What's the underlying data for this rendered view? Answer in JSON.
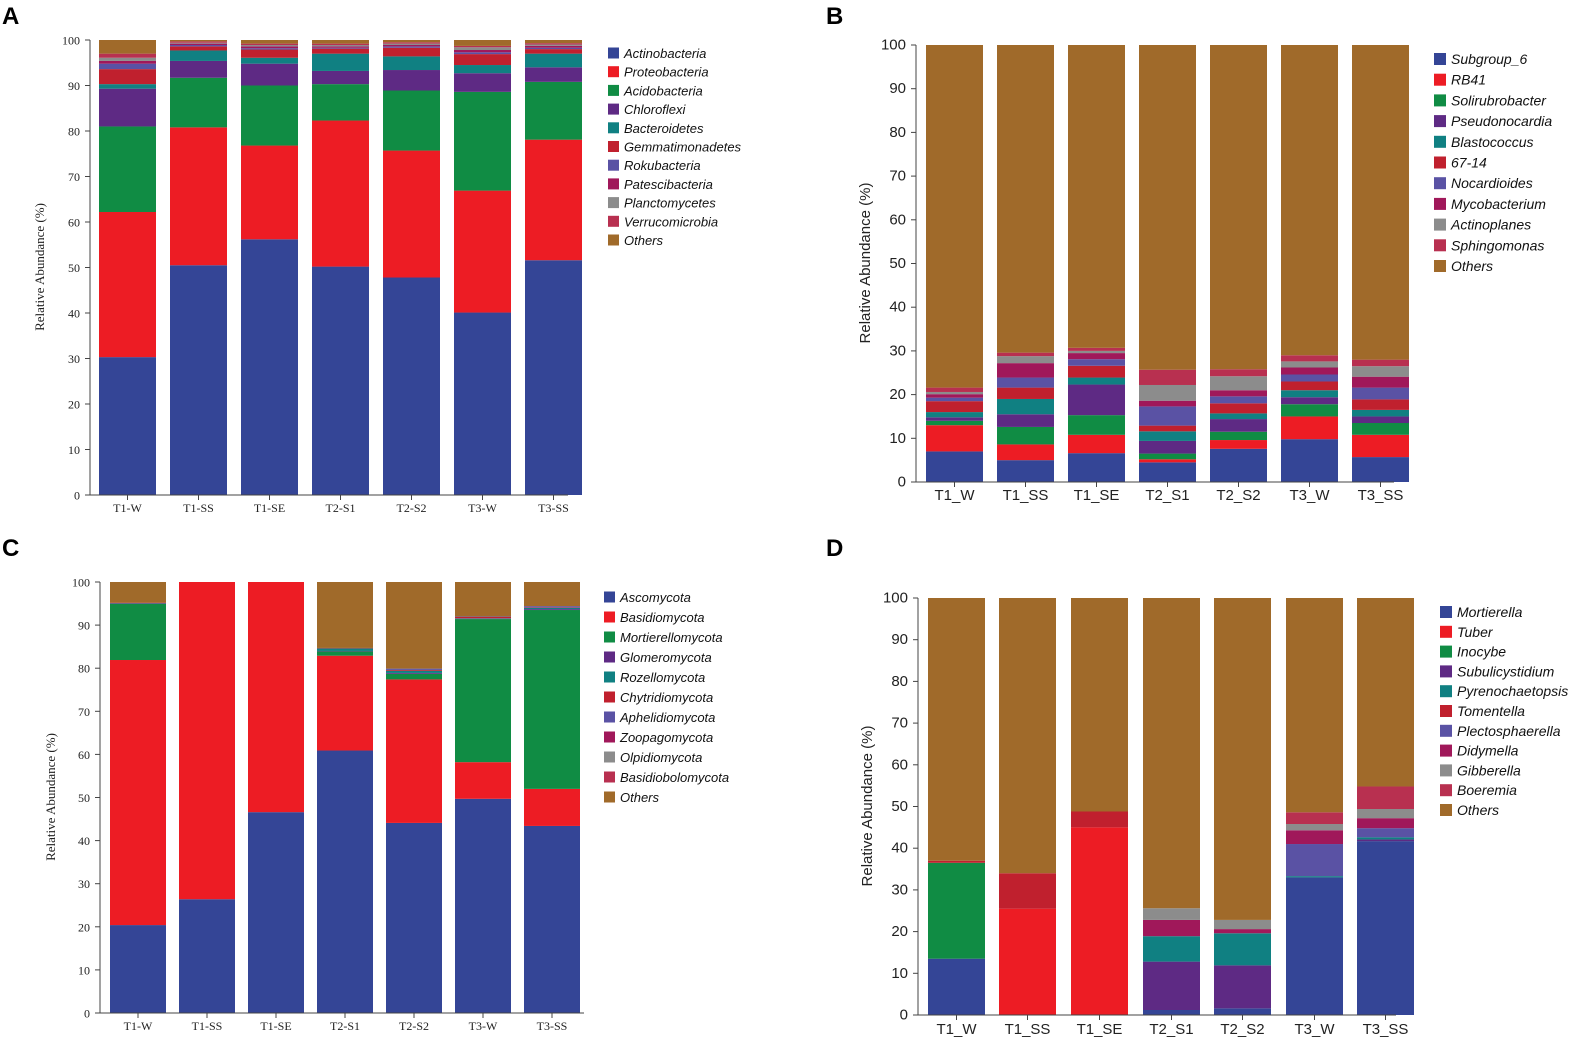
{
  "chart_data": [
    {
      "panel": "A",
      "type": "bar",
      "stacked": true,
      "ylabel": "Relative Abundance (%)",
      "xlabel": "",
      "ylim": [
        0,
        100
      ],
      "yticks": [
        "0",
        "10",
        "20",
        "30",
        "40",
        "50",
        "60",
        "70",
        "80",
        "90",
        "100"
      ],
      "categories": [
        "T1-W",
        "T1-SS",
        "T1-SE",
        "T2-S1",
        "T2-S2",
        "T3-W",
        "T3-SS"
      ],
      "series": [
        {
          "name": "Actinobacteria",
          "color": "#344596",
          "values": [
            30.3,
            50.5,
            56.2,
            50.2,
            47.8,
            40.1,
            51.6
          ]
        },
        {
          "name": "Proteobacteria",
          "color": "#ed1c24",
          "values": [
            31.9,
            30.3,
            20.6,
            32.1,
            27.9,
            26.8,
            26.5
          ]
        },
        {
          "name": "Acidobacteria",
          "color": "#108c44",
          "values": [
            18.8,
            10.9,
            13.2,
            8.0,
            13.2,
            21.7,
            12.7
          ]
        },
        {
          "name": "Chloroflexi",
          "color": "#5e2a84",
          "values": [
            8.3,
            3.7,
            4.8,
            2.9,
            4.5,
            4.1,
            3.2
          ]
        },
        {
          "name": "Bacteroidetes",
          "color": "#108082",
          "values": [
            1.0,
            2.3,
            1.3,
            3.8,
            3.0,
            1.8,
            3.0
          ]
        },
        {
          "name": "Gemmatimonadetes",
          "color": "#c0202e",
          "values": [
            3.3,
            0.9,
            1.8,
            1.1,
            1.9,
            2.4,
            1.0
          ]
        },
        {
          "name": "Rokubacteria",
          "color": "#5a52a4",
          "values": [
            1.2,
            0.3,
            0.3,
            0.2,
            0.3,
            0.4,
            0.3
          ]
        },
        {
          "name": "Patescibacteria",
          "color": "#a0185a",
          "values": [
            0.6,
            0.3,
            0.4,
            0.3,
            0.3,
            0.5,
            0.4
          ]
        },
        {
          "name": "Planctomycetes",
          "color": "#8c8c8c",
          "values": [
            0.7,
            0.2,
            0.3,
            0.3,
            0.3,
            0.6,
            0.3
          ]
        },
        {
          "name": "Verrucomicrobia",
          "color": "#b83050",
          "values": [
            0.9,
            0.3,
            0.3,
            0.3,
            0.3,
            0.3,
            0.3
          ]
        },
        {
          "name": "Others",
          "color": "#a06a2a",
          "values": [
            3.0,
            0.3,
            0.8,
            0.8,
            0.5,
            1.3,
            0.7
          ]
        }
      ]
    },
    {
      "panel": "B",
      "type": "bar",
      "stacked": true,
      "ylabel": "Relative Abundance (%)",
      "xlabel": "",
      "ylim": [
        0,
        100
      ],
      "yticks": [
        "0",
        "10",
        "20",
        "30",
        "40",
        "50",
        "60",
        "70",
        "80",
        "90",
        "100"
      ],
      "categories": [
        "T1_W",
        "T1_SS",
        "T1_SE",
        "T2_S1",
        "T2_S2",
        "T3_W",
        "T3_SS"
      ],
      "series": [
        {
          "name": "Subgroup_6",
          "color": "#344596",
          "values": [
            7.0,
            5.0,
            6.6,
            4.5,
            7.6,
            9.8,
            5.7
          ]
        },
        {
          "name": "RB41",
          "color": "#ed1c24",
          "values": [
            6.0,
            3.6,
            4.2,
            0.7,
            2.0,
            5.2,
            5.1
          ]
        },
        {
          "name": "Solirubrobacter",
          "color": "#108c44",
          "values": [
            1.0,
            4.0,
            4.5,
            1.3,
            1.9,
            2.8,
            2.7
          ]
        },
        {
          "name": "Pseudonocardia",
          "color": "#5e2a84",
          "values": [
            0.8,
            2.9,
            7.0,
            2.9,
            2.9,
            1.6,
            1.5
          ]
        },
        {
          "name": "Blastococcus",
          "color": "#108082",
          "values": [
            1.2,
            3.5,
            1.6,
            2.2,
            1.3,
            1.6,
            1.5
          ]
        },
        {
          "name": "67-14",
          "color": "#c0202e",
          "values": [
            2.5,
            2.6,
            2.7,
            1.3,
            2.3,
            2.0,
            2.4
          ]
        },
        {
          "name": "Nocardioides",
          "color": "#5a52a4",
          "values": [
            0.8,
            2.3,
            1.5,
            4.4,
            1.6,
            1.6,
            2.7
          ]
        },
        {
          "name": "Mycobacterium",
          "color": "#a0185a",
          "values": [
            0.8,
            3.3,
            1.4,
            1.3,
            1.4,
            1.6,
            2.5
          ]
        },
        {
          "name": "Actinoplanes",
          "color": "#8c8c8c",
          "values": [
            0.5,
            1.6,
            0.5,
            3.6,
            3.2,
            1.4,
            2.4
          ]
        },
        {
          "name": "Sphingomonas",
          "color": "#b83050",
          "values": [
            1.0,
            0.8,
            0.7,
            3.5,
            1.6,
            1.4,
            1.5
          ]
        },
        {
          "name": "Others",
          "color": "#a06a2a",
          "values": [
            78.4,
            70.4,
            69.3,
            74.3,
            74.2,
            71.0,
            72.0
          ]
        }
      ]
    },
    {
      "panel": "C",
      "type": "bar",
      "stacked": true,
      "ylabel": "Relative Abundance (%)",
      "xlabel": "",
      "ylim": [
        0,
        100
      ],
      "yticks": [
        "0",
        "10",
        "20",
        "30",
        "40",
        "50",
        "60",
        "70",
        "80",
        "90",
        "100"
      ],
      "categories": [
        "T1-W",
        "T1-SS",
        "T1-SE",
        "T2-S1",
        "T2-S2",
        "T3-W",
        "T3-SS"
      ],
      "series": [
        {
          "name": "Ascomycota",
          "color": "#344596",
          "values": [
            20.4,
            26.4,
            46.6,
            60.9,
            44.1,
            49.7,
            43.4
          ]
        },
        {
          "name": "Basidiomycota",
          "color": "#ed1c24",
          "values": [
            61.5,
            73.6,
            53.4,
            22.0,
            33.3,
            8.5,
            8.6
          ]
        },
        {
          "name": "Mortierellomycota",
          "color": "#108c44",
          "values": [
            13.0,
            0,
            0,
            1.0,
            1.3,
            33.2,
            41.5
          ]
        },
        {
          "name": "Glomeromycota",
          "color": "#5e2a84",
          "values": [
            0.1,
            0,
            0,
            0.1,
            0.2,
            0.1,
            0.2
          ]
        },
        {
          "name": "Rozellomycota",
          "color": "#108082",
          "values": [
            0.1,
            0,
            0,
            0.6,
            0.5,
            0.1,
            0.3
          ]
        },
        {
          "name": "Chytridiomycota",
          "color": "#c0202e",
          "values": [
            0.1,
            0,
            0,
            0.1,
            0.2,
            0.3,
            0.1
          ]
        },
        {
          "name": "Aphelidiomycota",
          "color": "#5a52a4",
          "values": [
            0,
            0,
            0,
            0,
            0.3,
            0.1,
            0.3
          ]
        },
        {
          "name": "Zoopagomycota",
          "color": "#a0185a",
          "values": [
            0,
            0,
            0,
            0,
            0,
            0,
            0
          ]
        },
        {
          "name": "Olpidiomycota",
          "color": "#8c8c8c",
          "values": [
            0,
            0,
            0,
            0,
            0,
            0,
            0
          ]
        },
        {
          "name": "Basidiobolomycota",
          "color": "#b83050",
          "values": [
            0,
            0,
            0,
            0,
            0,
            0,
            0
          ]
        },
        {
          "name": "Others",
          "color": "#a06a2a",
          "values": [
            4.8,
            0,
            0,
            15.3,
            20.1,
            8.0,
            5.6
          ]
        }
      ]
    },
    {
      "panel": "D",
      "type": "bar",
      "stacked": true,
      "ylabel": "Relative Abundance (%)",
      "xlabel": "",
      "ylim": [
        0,
        100
      ],
      "yticks": [
        "0",
        "10",
        "20",
        "30",
        "40",
        "50",
        "60",
        "70",
        "80",
        "90",
        "100"
      ],
      "categories": [
        "T1_W",
        "T1_SS",
        "T1_SE",
        "T2_S1",
        "T2_S2",
        "T3_W",
        "T3_SS"
      ],
      "series": [
        {
          "name": "Mortierella",
          "color": "#344596",
          "values": [
            13.5,
            0,
            0,
            1.2,
            1.6,
            33.0,
            41.7
          ]
        },
        {
          "name": "Tuber",
          "color": "#ed1c24",
          "values": [
            0,
            25.5,
            45.0,
            0,
            0,
            0,
            0
          ]
        },
        {
          "name": "Inocybe",
          "color": "#108c44",
          "values": [
            23.0,
            0,
            0,
            0,
            0,
            0,
            0
          ]
        },
        {
          "name": "Subulicystidium",
          "color": "#5e2a84",
          "values": [
            0,
            0,
            0,
            11.6,
            10.3,
            0,
            0.4
          ]
        },
        {
          "name": "Pyrenochaetopsis",
          "color": "#108082",
          "values": [
            0,
            0,
            0,
            6.1,
            7.7,
            0.3,
            0.5
          ]
        },
        {
          "name": "Tomentella",
          "color": "#c0202e",
          "values": [
            0.5,
            8.5,
            3.8,
            0,
            0,
            0,
            0
          ]
        },
        {
          "name": "Plectosphaerella",
          "color": "#5a52a4",
          "values": [
            0,
            0,
            0,
            0,
            0,
            7.7,
            2.2
          ]
        },
        {
          "name": "Didymella",
          "color": "#a0185a",
          "values": [
            0,
            0,
            0,
            3.9,
            1.0,
            3.3,
            2.4
          ]
        },
        {
          "name": "Gibberella",
          "color": "#8c8c8c",
          "values": [
            0,
            0,
            0,
            2.8,
            2.2,
            1.5,
            2.2
          ]
        },
        {
          "name": "Boeremia",
          "color": "#b83050",
          "values": [
            0,
            0,
            0,
            0,
            0,
            2.8,
            5.4
          ]
        },
        {
          "name": "Others",
          "color": "#a06a2a",
          "values": [
            63.0,
            66.0,
            51.2,
            74.4,
            77.2,
            51.4,
            45.2
          ]
        }
      ]
    }
  ]
}
